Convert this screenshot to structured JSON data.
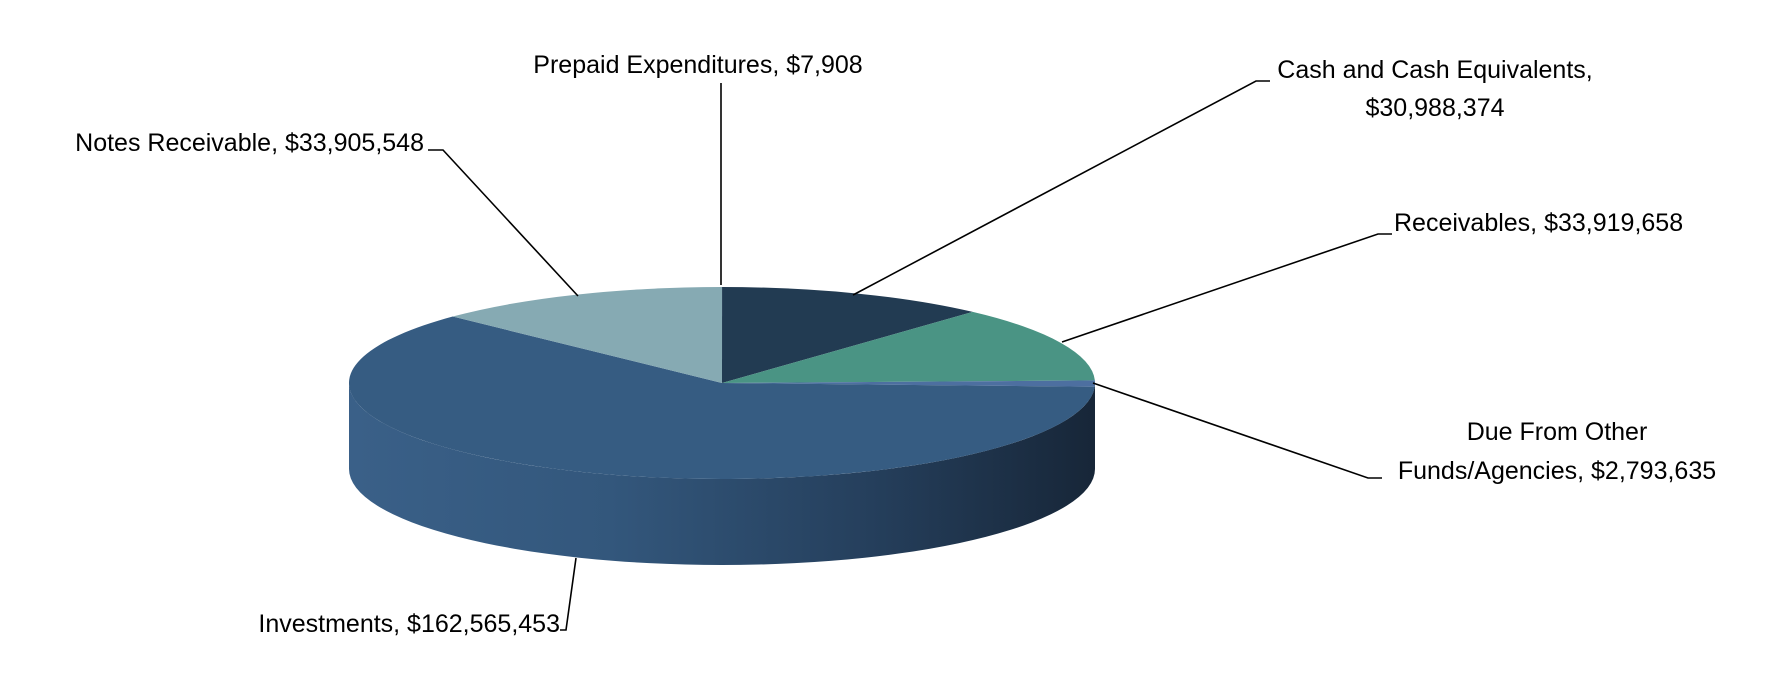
{
  "chart_data": {
    "type": "pie",
    "style": "3d",
    "title": "",
    "legend": "none",
    "slices": [
      {
        "label": "Prepaid Expenditures, $7,908",
        "name": "Prepaid Expenditures",
        "value": 7908,
        "color": "#1F3D55"
      },
      {
        "label": "Cash and Cash Equivalents, $30,988,374",
        "name": "Cash and Cash Equivalents",
        "value": 30988374,
        "color": "#223B52"
      },
      {
        "label": "Receivables, $33,919,658",
        "name": "Receivables",
        "value": 33919658,
        "color": "#4A9484"
      },
      {
        "label": "Due From Other Funds/Agencies, $2,793,635",
        "name": "Due From Other Funds/Agencies",
        "value": 2793635,
        "color": "#4D6FA0"
      },
      {
        "label": "Investments, $162,565,453",
        "name": "Investments",
        "value": 162565453,
        "color": "#365C82"
      },
      {
        "label": "Notes Receivable, $33,905,548",
        "name": "Notes Receivable",
        "value": 33905548,
        "color": "#86AAB3"
      }
    ],
    "labels": {
      "prepaid": "Prepaid Expenditures, $7,908",
      "cash_line1": "Cash and Cash Equivalents,",
      "cash_line2": "$30,988,374",
      "receivables": "Receivables, $33,919,658",
      "due_line1": "Due From Other",
      "due_line2": "Funds/Agencies, $2,793,635",
      "investments": "Investments, $162,565,453",
      "notes": "Notes Receivable, $33,905,548"
    }
  }
}
